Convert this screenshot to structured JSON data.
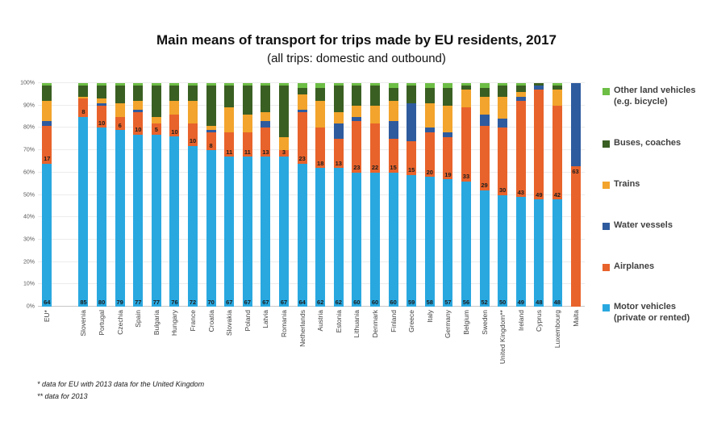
{
  "title": "Main means of transport for trips made by EU residents, 2017",
  "subtitle": "(all trips: domestic and outbound)",
  "footnotes": [
    "* data for EU with 2013 data for the United Kingdom",
    "** data for 2013"
  ],
  "y_axis": {
    "min": 0,
    "max": 100,
    "step": 10,
    "suffix": "%"
  },
  "legend": {
    "position": "right",
    "items": [
      {
        "label": "Other land vehicles (e.g. bicycle)",
        "color": "#6dbe45"
      },
      {
        "label": "Buses, coaches",
        "color": "#3a5f23"
      },
      {
        "label": "Trains",
        "color": "#f2a42c"
      },
      {
        "label": "Water vessels",
        "color": "#2e5b9e"
      },
      {
        "label": "Airplanes",
        "color": "#e8632b"
      },
      {
        "label": "Motor vehicles (private or rented)",
        "color": "#29a8e0"
      }
    ]
  },
  "chart_data": {
    "type": "bar",
    "stacked": true,
    "unit": "%",
    "ylim": [
      0,
      100
    ],
    "grid": true,
    "legend_position": "right",
    "gap_after_first": true,
    "labeled_series": [
      "Motor vehicles (private or rented)",
      "Airplanes"
    ],
    "categories": [
      "EU*",
      "Slovenia",
      "Portugal",
      "Czechia",
      "Spain",
      "Bulgaria",
      "Hungary",
      "France",
      "Croatia",
      "Slovakia",
      "Poland",
      "Latvia",
      "Romania",
      "Netherlands",
      "Austria",
      "Estonia",
      "Lithuania",
      "Denmark",
      "Finland",
      "Greece",
      "Italy",
      "Germany",
      "Belgium",
      "Sweden",
      "United Kingdom**",
      "Ireland",
      "Cyprus",
      "Luxembourg",
      "Malta"
    ],
    "series": [
      {
        "key": "motor",
        "name": "Motor vehicles (private or rented)",
        "color": "#29a8e0",
        "values": [
          64,
          85,
          80,
          79,
          77,
          77,
          76,
          72,
          70,
          67,
          67,
          67,
          67,
          64,
          62,
          62,
          60,
          60,
          60,
          59,
          58,
          57,
          56,
          52,
          50,
          49,
          48,
          48,
          0
        ]
      },
      {
        "key": "airplanes",
        "name": "Airplanes",
        "color": "#e8632b",
        "values": [
          17,
          8,
          10,
          6,
          10,
          5,
          10,
          10,
          8,
          11,
          11,
          13,
          3,
          23,
          18,
          13,
          23,
          22,
          15,
          15,
          20,
          19,
          33,
          29,
          30,
          43,
          49,
          42,
          63
        ]
      },
      {
        "key": "water",
        "name": "Water vessels",
        "color": "#2e5b9e",
        "values": [
          2,
          0,
          1,
          0,
          1,
          0,
          0,
          0,
          1,
          0,
          0,
          3,
          0,
          1,
          0,
          7,
          2,
          0,
          8,
          17,
          2,
          2,
          0,
          5,
          4,
          2,
          2,
          0,
          37
        ]
      },
      {
        "key": "trains",
        "name": "Trains",
        "color": "#f2a42c",
        "values": [
          9,
          1,
          2,
          6,
          4,
          3,
          6,
          10,
          2,
          11,
          8,
          4,
          6,
          7,
          12,
          5,
          5,
          8,
          9,
          0,
          11,
          12,
          8,
          8,
          10,
          2,
          0,
          7,
          0
        ]
      },
      {
        "key": "buses",
        "name": "Buses, coaches",
        "color": "#3a5f23",
        "values": [
          7,
          5,
          6,
          8,
          7,
          14,
          7,
          7,
          18,
          10,
          13,
          12,
          23,
          3,
          6,
          12,
          9,
          9,
          6,
          8,
          7,
          8,
          2,
          4,
          5,
          3,
          1,
          2,
          0
        ]
      },
      {
        "key": "other",
        "name": "Other land vehicles (e.g. bicycle)",
        "color": "#6dbe45",
        "values": [
          1,
          1,
          1,
          1,
          1,
          1,
          1,
          1,
          1,
          1,
          1,
          1,
          1,
          2,
          2,
          1,
          1,
          1,
          2,
          1,
          2,
          2,
          1,
          2,
          1,
          1,
          0,
          1,
          0
        ]
      }
    ]
  }
}
